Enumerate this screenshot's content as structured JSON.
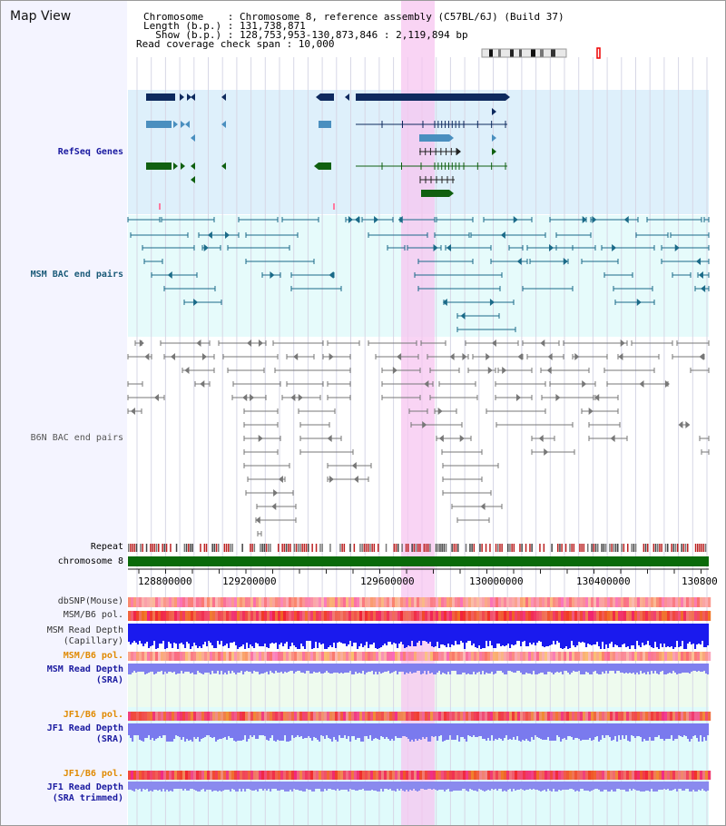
{
  "title": "Map View",
  "header": {
    "chromosome_label": "Chromosome    : Chromosome 8, reference assembly (C57BL/6J) (Build 37)",
    "length_label": "Length (b.p.) : 131,738,871",
    "show_label": "  Show (b.p.) : 128,753,953-130,873,846 : 2,119,894 bp",
    "coverage_label": "Read coverage check span : 10,000"
  },
  "tracks": {
    "refseq": "RefSeq Genes",
    "msm_bac": "MSM BAC end pairs",
    "b6n_bac": "B6N BAC end pairs",
    "repeat": "Repeat",
    "chromosome": "chromosome 8",
    "dbsnp": "dbSNP(Mouse)",
    "msm_b6_pol": "MSM/B6 pol.",
    "msm_read_depth_cap": "MSM Read Depth\n(Capillary)",
    "msm_b6_pol_2": "MSM/B6 pol.",
    "msm_read_depth_sra": "MSM Read Depth\n(SRA)",
    "jf1_b6_pol": "JF1/B6 pol.",
    "jf1_read_depth_sra": "JF1 Read Depth\n(SRA)",
    "jf1_b6_pol_2": "JF1/B6 pol.",
    "jf1_read_depth_trim": "JF1 Read Depth\n(SRA trimmed)"
  },
  "axis": {
    "ticks": [
      "128800000",
      "129200000",
      "129600000",
      "130000000",
      "130400000",
      "130800"
    ]
  },
  "colors": {
    "refseq_label": "#1a1aa0",
    "msm_label": "#1a5a78",
    "b6n_label": "#555555",
    "pol_orange": "#e08a00",
    "depth_blue": "#1a1aa0",
    "highlight": "#f7c6f0",
    "gene_navy": "#0e2a5e",
    "gene_teal": "#4a8fbf",
    "gene_green": "#106010",
    "chrom_green": "#0a6a0a"
  }
}
